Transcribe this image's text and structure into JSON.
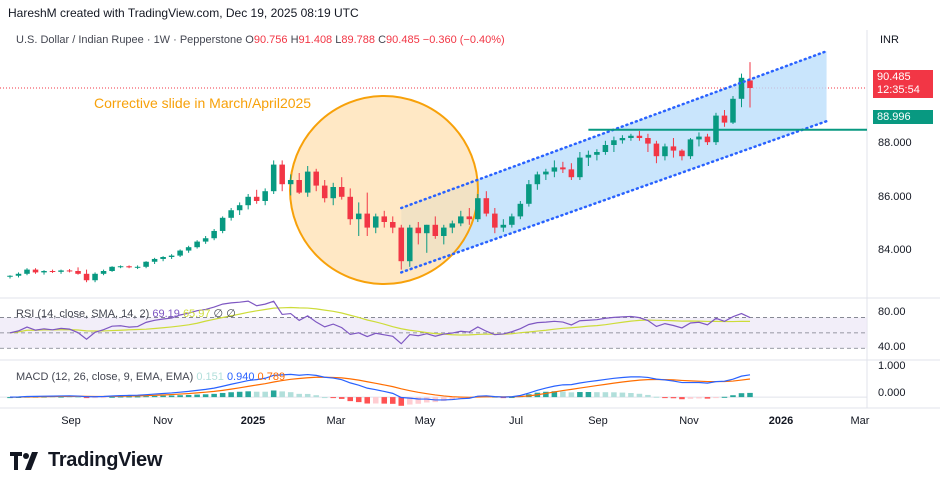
{
  "header": {
    "attribution": "HareshM created with TradingView.com, Dec 19, 2025 08:19 UTC"
  },
  "legend": {
    "symbol": "U.S. Dollar / Indian Rupee · 1W · Pepperstone",
    "o_label": "O",
    "o": "90.756",
    "h_label": "H",
    "h": "91.408",
    "l_label": "L",
    "l": "89.788",
    "c_label": "C",
    "c": "90.485",
    "change": "−0.360 (−0.40%)"
  },
  "currency": "INR",
  "annotation": "Corrective slide in March/April2025",
  "price_tags": {
    "last_price": "90.485",
    "countdown": "12:35:54",
    "level": "88.996"
  },
  "price_axis": {
    "ticks": [
      "88.000",
      "86.000",
      "84.000"
    ]
  },
  "rsi": {
    "label": "RSI (14, close, SMA, 14, 2)",
    "v1": "69.19",
    "v2": "65.97",
    "v3": "∅",
    "v4": "∅",
    "ticks": [
      "80.00",
      "40.00"
    ]
  },
  "macd": {
    "label": "MACD (12, 26, close, 9, EMA, EMA)",
    "hist": "0.151",
    "macd": "0.940",
    "signal": "0.789",
    "ticks": [
      "1.000",
      "0.000"
    ]
  },
  "time_axis": {
    "labels": [
      "Sep",
      "Nov",
      "2025",
      "Mar",
      "May",
      "Jul",
      "Sep",
      "Nov",
      "2026",
      "Mar"
    ]
  },
  "colors": {
    "up": "#089981",
    "down": "#f23645",
    "channel_fill": "#bbdefb",
    "channel_line": "#2962ff",
    "level_line": "#089981",
    "annotation": "#f7a10a",
    "rsi_line": "#7e57c2",
    "rsi_ma": "#cddc39",
    "macd_line": "#2962ff",
    "signal_line": "#ff6d00"
  },
  "footer": {
    "brand": "TradingView"
  },
  "chart_data": {
    "type": "candlestick",
    "title": "U.S. Dollar / Indian Rupee · 1W · Pepperstone",
    "ylim": [
      83.2,
      92.2
    ],
    "candles": [
      [
        83.75,
        83.8,
        83.68,
        83.78
      ],
      [
        83.78,
        83.9,
        83.72,
        83.85
      ],
      [
        83.85,
        84.05,
        83.8,
        84.0
      ],
      [
        84.0,
        84.05,
        83.85,
        83.9
      ],
      [
        83.9,
        83.98,
        83.82,
        83.95
      ],
      [
        83.95,
        84.0,
        83.88,
        83.92
      ],
      [
        83.92,
        84.0,
        83.85,
        83.97
      ],
      [
        83.97,
        84.02,
        83.9,
        83.95
      ],
      [
        83.95,
        84.08,
        83.82,
        83.85
      ],
      [
        83.85,
        84.0,
        83.55,
        83.62
      ],
      [
        83.62,
        83.9,
        83.55,
        83.85
      ],
      [
        83.85,
        84.0,
        83.8,
        83.95
      ],
      [
        83.95,
        84.12,
        83.92,
        84.1
      ],
      [
        84.1,
        84.15,
        84.05,
        84.12
      ],
      [
        84.12,
        84.15,
        84.05,
        84.08
      ],
      [
        84.08,
        84.15,
        84.02,
        84.1
      ],
      [
        84.1,
        84.3,
        84.05,
        84.28
      ],
      [
        84.28,
        84.42,
        84.2,
        84.38
      ],
      [
        84.38,
        84.48,
        84.3,
        84.45
      ],
      [
        84.45,
        84.55,
        84.38,
        84.5
      ],
      [
        84.5,
        84.72,
        84.45,
        84.68
      ],
      [
        84.68,
        84.85,
        84.6,
        84.8
      ],
      [
        84.8,
        85.05,
        84.75,
        85.0
      ],
      [
        85.0,
        85.2,
        84.92,
        85.12
      ],
      [
        85.12,
        85.45,
        85.05,
        85.38
      ],
      [
        85.38,
        85.9,
        85.3,
        85.85
      ],
      [
        85.85,
        86.2,
        85.75,
        86.12
      ],
      [
        86.12,
        86.4,
        85.95,
        86.3
      ],
      [
        86.3,
        86.7,
        86.15,
        86.6
      ],
      [
        86.6,
        86.85,
        86.35,
        86.45
      ],
      [
        86.45,
        86.9,
        86.3,
        86.8
      ],
      [
        86.8,
        87.9,
        86.7,
        87.75
      ],
      [
        87.75,
        87.9,
        86.8,
        87.05
      ],
      [
        87.05,
        87.4,
        86.65,
        87.2
      ],
      [
        87.2,
        87.45,
        86.7,
        86.75
      ],
      [
        86.75,
        87.7,
        86.6,
        87.5
      ],
      [
        87.5,
        87.6,
        86.8,
        87.0
      ],
      [
        87.0,
        87.2,
        86.4,
        86.55
      ],
      [
        86.55,
        87.1,
        86.3,
        86.95
      ],
      [
        86.95,
        87.3,
        86.5,
        86.6
      ],
      [
        86.6,
        86.9,
        85.6,
        85.8
      ],
      [
        85.8,
        86.4,
        85.2,
        86.0
      ],
      [
        86.0,
        86.75,
        85.2,
        85.5
      ],
      [
        85.5,
        86.0,
        85.3,
        85.9
      ],
      [
        85.9,
        86.1,
        85.5,
        85.7
      ],
      [
        85.7,
        85.9,
        85.3,
        85.5
      ],
      [
        85.5,
        85.6,
        84.0,
        84.3
      ],
      [
        84.3,
        85.6,
        84.1,
        85.5
      ],
      [
        85.5,
        85.7,
        84.9,
        85.3
      ],
      [
        85.3,
        85.6,
        84.6,
        85.6
      ],
      [
        85.6,
        85.9,
        85.1,
        85.2
      ],
      [
        85.2,
        85.6,
        84.9,
        85.5
      ],
      [
        85.5,
        85.75,
        85.3,
        85.65
      ],
      [
        85.65,
        86.1,
        85.55,
        85.9
      ],
      [
        85.9,
        86.2,
        85.6,
        85.8
      ],
      [
        85.8,
        86.7,
        85.7,
        86.55
      ],
      [
        86.55,
        86.8,
        85.9,
        86.0
      ],
      [
        86.0,
        86.2,
        85.3,
        85.5
      ],
      [
        85.5,
        85.8,
        85.35,
        85.6
      ],
      [
        85.6,
        86.0,
        85.5,
        85.9
      ],
      [
        85.9,
        86.45,
        85.8,
        86.35
      ],
      [
        86.35,
        87.2,
        86.25,
        87.05
      ],
      [
        87.05,
        87.5,
        86.85,
        87.4
      ],
      [
        87.4,
        87.6,
        87.2,
        87.5
      ],
      [
        87.5,
        87.9,
        87.3,
        87.65
      ],
      [
        87.65,
        87.85,
        87.45,
        87.58
      ],
      [
        87.58,
        87.8,
        87.2,
        87.3
      ],
      [
        87.3,
        88.2,
        87.2,
        88.0
      ],
      [
        88.0,
        88.25,
        87.7,
        88.1
      ],
      [
        88.1,
        88.3,
        87.9,
        88.2
      ],
      [
        88.2,
        88.6,
        88.1,
        88.45
      ],
      [
        88.45,
        88.75,
        88.2,
        88.62
      ],
      [
        88.62,
        88.8,
        88.5,
        88.7
      ],
      [
        88.7,
        88.85,
        88.6,
        88.78
      ],
      [
        88.78,
        88.95,
        88.6,
        88.7
      ],
      [
        88.7,
        88.85,
        88.2,
        88.5
      ],
      [
        88.5,
        88.6,
        87.8,
        88.05
      ],
      [
        88.05,
        88.5,
        87.9,
        88.4
      ],
      [
        88.4,
        88.7,
        88.0,
        88.25
      ],
      [
        88.25,
        88.3,
        87.9,
        88.05
      ],
      [
        88.05,
        88.7,
        87.95,
        88.65
      ],
      [
        88.65,
        88.9,
        88.4,
        88.75
      ],
      [
        88.75,
        88.85,
        88.45,
        88.55
      ],
      [
        88.55,
        89.6,
        88.45,
        89.5
      ],
      [
        89.5,
        89.7,
        89.1,
        89.25
      ],
      [
        89.25,
        90.2,
        89.2,
        90.1
      ],
      [
        90.1,
        91.0,
        89.8,
        90.85
      ],
      [
        90.756,
        91.408,
        89.788,
        90.485
      ]
    ],
    "channel": {
      "lower_start": 83.9,
      "lower_end": 89.3,
      "upper_start": 86.2,
      "upper_end": 91.8
    },
    "horizontal_level": 88.996,
    "rsi_range": [
      20,
      90
    ],
    "macd_range": [
      -0.25,
      1.2
    ]
  }
}
